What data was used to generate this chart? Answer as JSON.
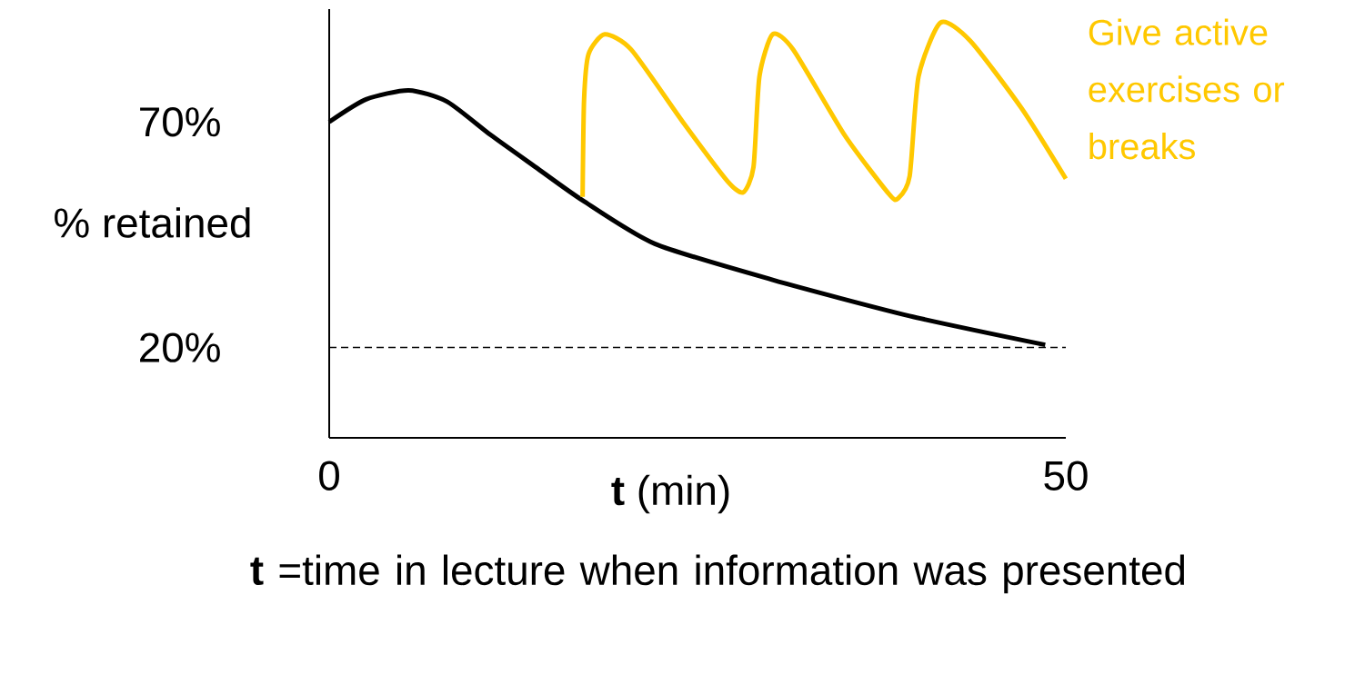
{
  "chart_data": {
    "type": "line",
    "xlabel": "**t** (min)",
    "ylabel": "% retained",
    "xlim": [
      0,
      50
    ],
    "xticks": [
      0,
      50
    ],
    "ylim": [
      0,
      95
    ],
    "yticks": [
      {
        "value": 70,
        "label": "70%"
      },
      {
        "value": 20,
        "label": "20%"
      }
    ],
    "annotations": [
      "**t** =time in lecture when information was presented"
    ],
    "ref_lines": [
      {
        "axis": "y",
        "value": 20,
        "color": "#000000",
        "line_style": "dashed"
      }
    ],
    "grid": false,
    "marker": "none",
    "line_style": "solid",
    "series": [
      {
        "color": "#000000",
        "x": [
          0,
          2.5,
          5.4,
          8,
          11,
          14,
          17.2,
          22.1,
          30.1,
          39.4,
          48.6
        ],
        "values": [
          70,
          75,
          77,
          74.5,
          67,
          60,
          52.6,
          43,
          35,
          27,
          20.6
        ]
      },
      {
        "name": "Give active exercises or breaks",
        "color": "#ffc800",
        "x": [
          17.2,
          17.3,
          17.6,
          18.7,
          20.5,
          24,
          27,
          28.1,
          28.8,
          29.2,
          30.1,
          31.5,
          35,
          38,
          38.6,
          39.4,
          40,
          41.5,
          43.5,
          47,
          50
        ],
        "values": [
          53.4,
          75,
          85,
          89.4,
          86,
          70,
          57,
          54.4,
          60,
          80,
          89.4,
          86,
          67,
          54,
          53,
          58,
          80,
          92,
          88,
          73,
          57.4
        ]
      }
    ]
  }
}
